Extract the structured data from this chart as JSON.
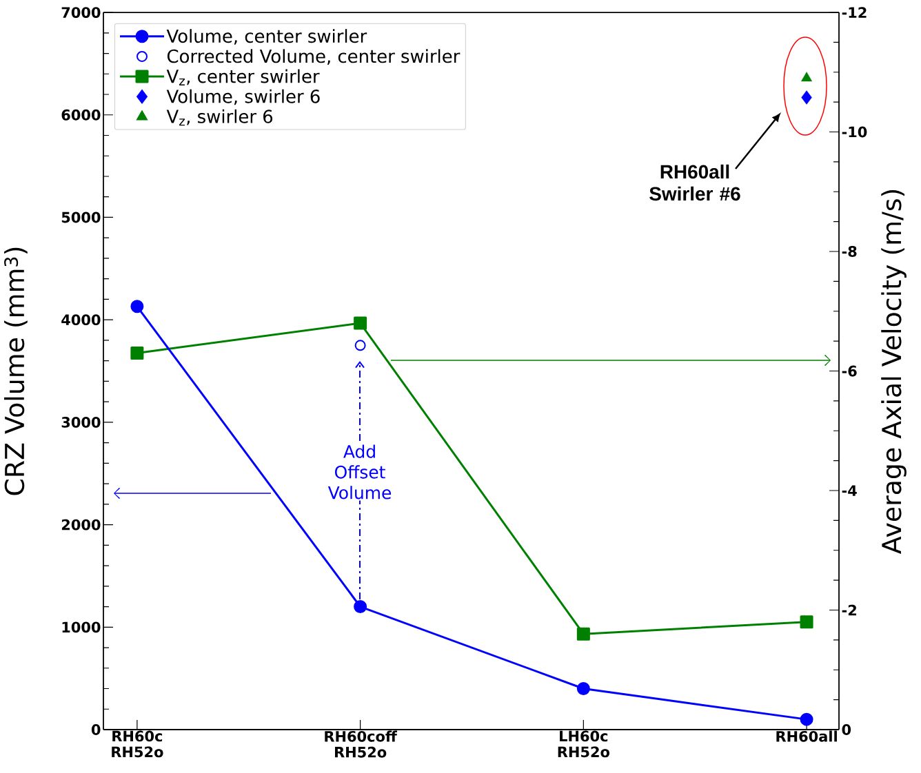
{
  "chart_data": {
    "type": "line",
    "ylabel": "CRZ Volume (mm$^{3}$)",
    "y2label": "Average Axial Velocity (m/s)",
    "categories": [
      "RH60c RH52o",
      "RH60coff RH52o",
      "LH60c RH52o",
      "RH60all"
    ],
    "series": [
      {
        "name": "Volume, center swirler",
        "type": "line",
        "color": "#0000ff",
        "marker": "circle",
        "values": [
          4130,
          1200,
          400,
          100
        ]
      },
      {
        "name": "Corrected Volume, center swirler",
        "type": "scatter",
        "color": "#0000ff",
        "marker": "circle",
        "values": [
          null,
          3750,
          null,
          null
        ]
      },
      {
        "name": "V$_{z}$, center swirler",
        "type": "line",
        "color": "#008000",
        "marker": "square",
        "axis": "y2",
        "values": [
          -6.3,
          -6.8,
          -1.6,
          -1.8
        ]
      },
      {
        "name": "Volume, swirler 6",
        "type": "scatter",
        "color": "#0000ff",
        "marker": "diamond",
        "values": [
          null,
          null,
          null,
          6170
        ]
      },
      {
        "name": "V$_{z}$, swirler 6",
        "type": "scatter",
        "color": "#008000",
        "marker": "triangle",
        "axis": "y2",
        "values": [
          null,
          null,
          null,
          -10.9
        ]
      }
    ],
    "ylim": [
      0,
      7000
    ],
    "yticks": [
      0,
      1000,
      2000,
      3000,
      4000,
      5000,
      6000,
      7000
    ],
    "y2lim": [
      0,
      -12
    ],
    "y2ticks": [
      0,
      -2,
      -4,
      -6,
      -8,
      -10,
      -12
    ],
    "grid": false,
    "legend": "top left",
    "annotations": [
      "Add Offset Volume",
      "RH60all Swirler #6"
    ]
  }
}
